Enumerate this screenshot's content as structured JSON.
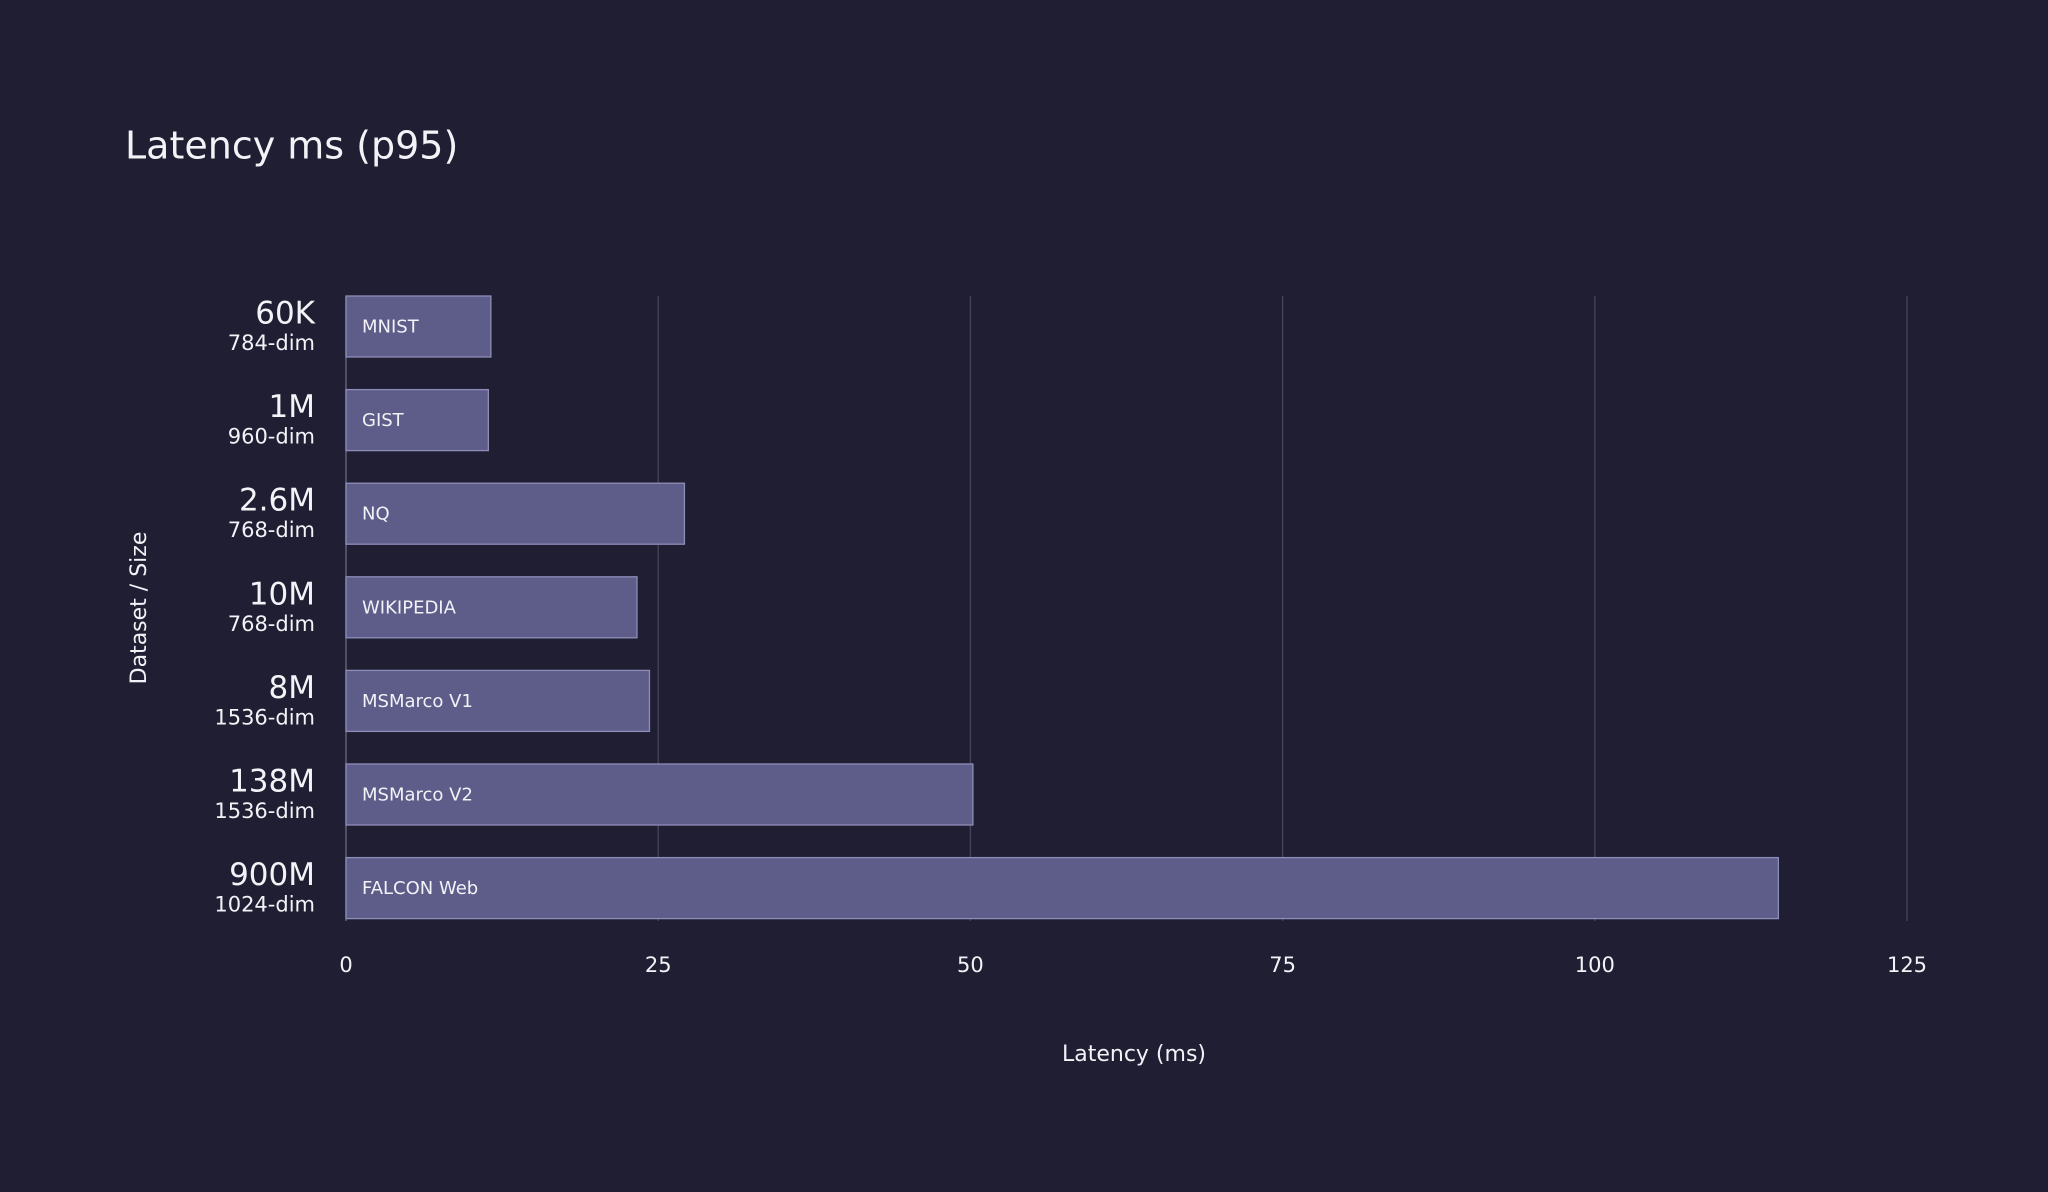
{
  "chart_data": {
    "type": "bar",
    "orientation": "horizontal",
    "title": "Latency ms (p95)",
    "xlabel": "Latency (ms)",
    "ylabel": "Dataset / Size",
    "categories": [
      "60K",
      "1M",
      "2.6M",
      "10M",
      "8M",
      "138M",
      "900M"
    ],
    "sublabels": [
      "784-dim",
      "960-dim",
      "768-dim",
      "768-dim",
      "1536-dim",
      "1536-dim",
      "1024-dim"
    ],
    "bar_labels": [
      "MNIST",
      "GIST",
      "NQ",
      "WIKIPEDIA",
      "MSMarco V1",
      "MSMarco V2",
      "FALCON Web"
    ],
    "values": [
      11.6,
      11.4,
      27.1,
      23.3,
      24.3,
      50.2,
      114.7
    ],
    "color": "#5e5d8a",
    "xlim": [
      0,
      125
    ],
    "xticks": [
      0,
      25,
      50,
      75,
      100,
      125
    ],
    "grid": true
  }
}
